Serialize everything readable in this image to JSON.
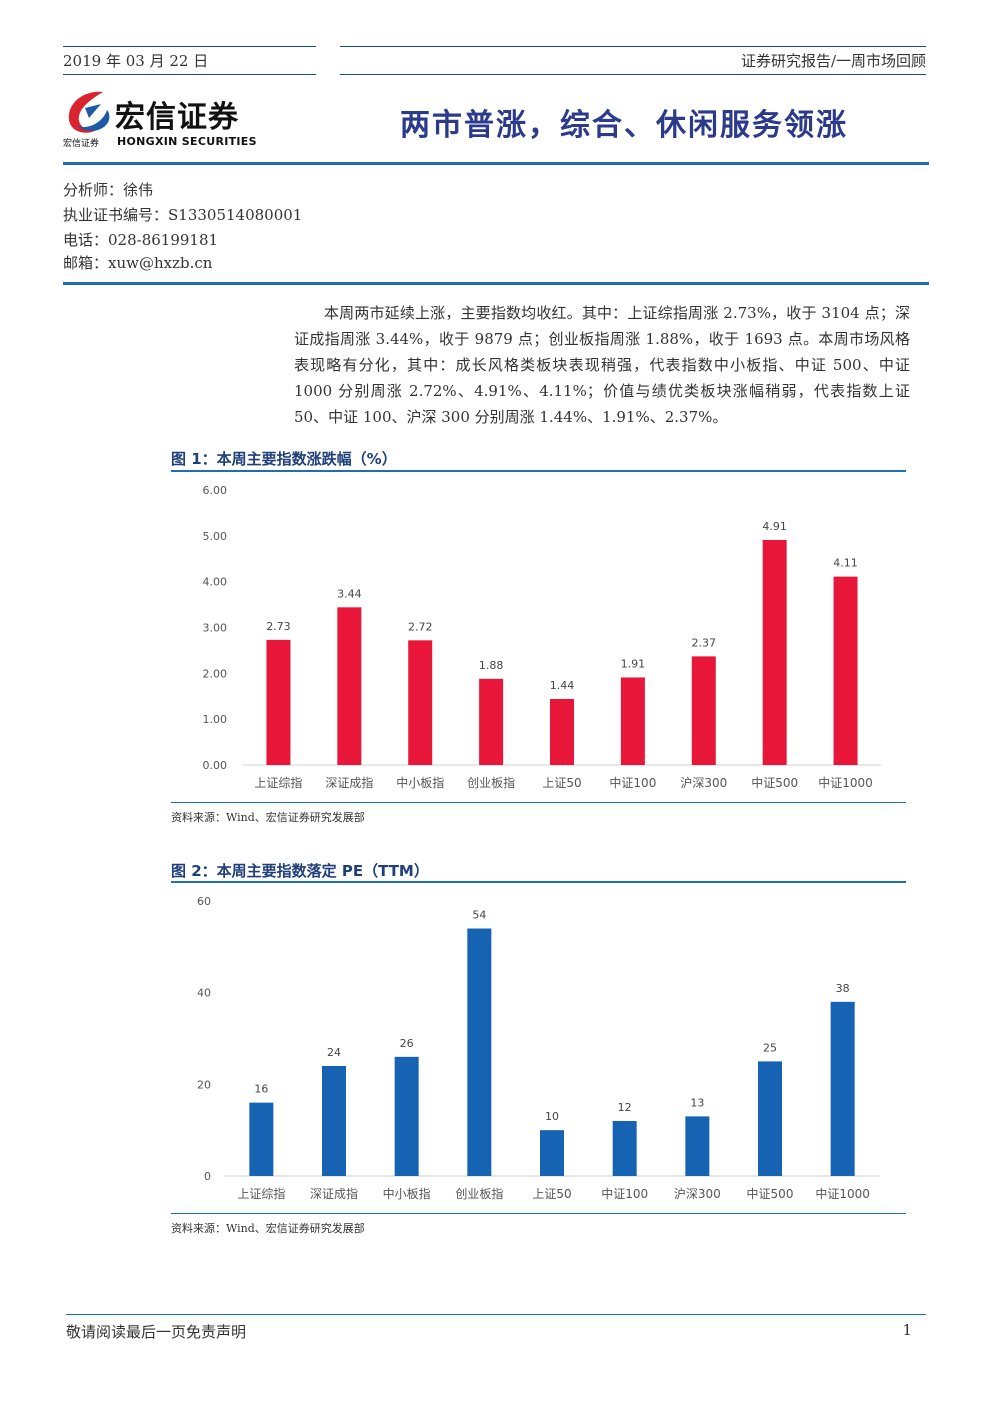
{
  "header": {
    "date": "2019 年 03 月 22 日",
    "report_type": "证券研究报告/一周市场回顾",
    "headline": "两市普涨，综合、休闲服务领涨"
  },
  "logo": {
    "name_cn": "宏信证券",
    "name_en": "HONGXIN SECURITIES",
    "small_cn": "宏信证券",
    "colors": {
      "red": "#d9232d",
      "blue": "#1f5aa8"
    }
  },
  "analyst": {
    "name_line": "分析师：徐伟",
    "license_line": "执业证书编号：S1330514080001",
    "phone_line": "电话：028-86199181",
    "email_line": "邮箱：xuw@hxzb.cn"
  },
  "summary": "本周两市延续上涨，主要指数均收红。其中：上证综指周涨 2.73%，收于 3104 点；深证成指周涨 3.44%，收于 9879 点；创业板指周涨 1.88%，收于 1693 点。本周市场风格表现略有分化，其中：成长风格类板块表现稍强，代表指数中小板指、中证 500、中证 1000 分别周涨 2.72%、4.91%、4.11%；价值与绩优类板块涨幅稍弱，代表指数上证 50、中证 100、沪深 300 分别周涨 1.44%、1.91%、2.37%。",
  "figures": [
    {
      "title": "图 1：本周主要指数涨跌幅（%）",
      "source": "资料来源：Wind、宏信证券研究发展部"
    },
    {
      "title": "图 2：本周主要指数落定 PE（TTM）",
      "source": "资料来源：Wind、宏信证券研究发展部"
    }
  ],
  "chart_data": [
    {
      "type": "bar",
      "title": "图 1：本周主要指数涨跌幅（%）",
      "categories": [
        "上证综指",
        "深证成指",
        "中小板指",
        "创业板指",
        "上证50",
        "中证100",
        "沪深300",
        "中证500",
        "中证1000"
      ],
      "values": [
        2.73,
        3.44,
        2.72,
        1.88,
        1.44,
        1.91,
        2.37,
        4.91,
        4.11
      ],
      "value_labels": [
        "2.73",
        "3.44",
        "2.72",
        "1.88",
        "1.44",
        "1.91",
        "2.37",
        "4.91",
        "4.11"
      ],
      "ylim": [
        0,
        6
      ],
      "yticks": [
        "0.00",
        "1.00",
        "2.00",
        "3.00",
        "4.00",
        "5.00",
        "6.00"
      ],
      "color": "#e8173a",
      "grid": false
    },
    {
      "type": "bar",
      "title": "图 2：本周主要指数落定 PE（TTM）",
      "categories": [
        "上证综指",
        "深证成指",
        "中小板指",
        "创业板指",
        "上证50",
        "中证100",
        "沪深300",
        "中证500",
        "中证1000"
      ],
      "values": [
        16,
        24,
        26,
        54,
        10,
        12,
        13,
        25,
        38
      ],
      "value_labels": [
        "16",
        "24",
        "26",
        "54",
        "10",
        "12",
        "13",
        "25",
        "38"
      ],
      "ylim": [
        0,
        60
      ],
      "yticks": [
        "0",
        "20",
        "40",
        "60"
      ],
      "color": "#1563b2",
      "grid": false
    }
  ],
  "footer": {
    "disclaimer": "敬请阅读最后一页免责声明",
    "page": "1"
  }
}
